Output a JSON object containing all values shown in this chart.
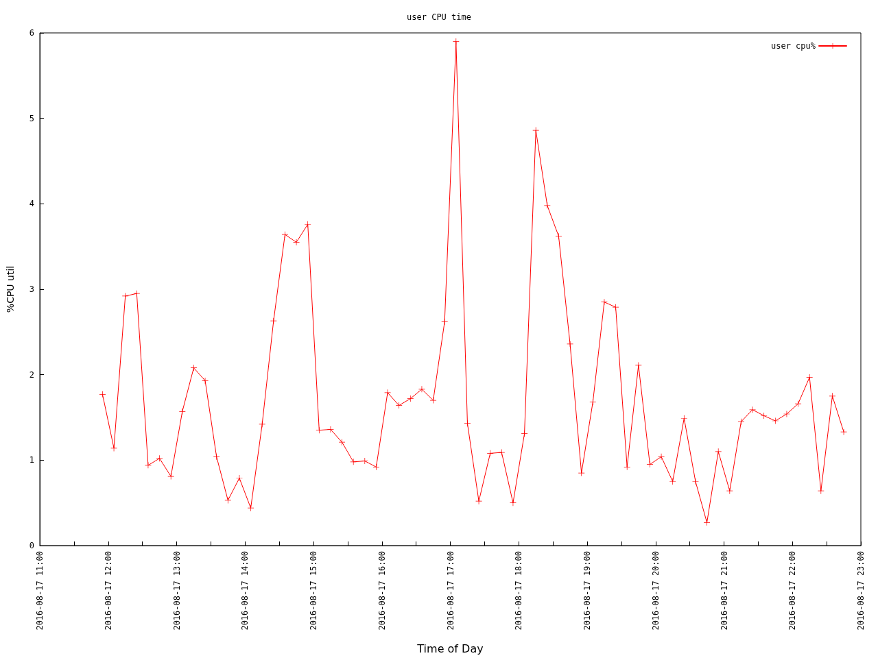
{
  "chart_data": {
    "type": "line",
    "title": "user CPU time",
    "xlabel": "Time of Day",
    "ylabel": "%CPU util",
    "x": [
      "2016-08-17T11:55",
      "2016-08-17T12:05",
      "2016-08-17T12:15",
      "2016-08-17T12:25",
      "2016-08-17T12:35",
      "2016-08-17T12:45",
      "2016-08-17T12:55",
      "2016-08-17T13:05",
      "2016-08-17T13:15",
      "2016-08-17T13:25",
      "2016-08-17T13:35",
      "2016-08-17T13:45",
      "2016-08-17T13:55",
      "2016-08-17T14:05",
      "2016-08-17T14:15",
      "2016-08-17T14:25",
      "2016-08-17T14:35",
      "2016-08-17T14:45",
      "2016-08-17T14:55",
      "2016-08-17T15:05",
      "2016-08-17T15:15",
      "2016-08-17T15:25",
      "2016-08-17T15:35",
      "2016-08-17T15:45",
      "2016-08-17T15:55",
      "2016-08-17T16:05",
      "2016-08-17T16:15",
      "2016-08-17T16:25",
      "2016-08-17T16:35",
      "2016-08-17T16:45",
      "2016-08-17T16:55",
      "2016-08-17T17:05",
      "2016-08-17T17:15",
      "2016-08-17T17:25",
      "2016-08-17T17:35",
      "2016-08-17T17:45",
      "2016-08-17T17:55",
      "2016-08-17T18:05",
      "2016-08-17T18:15",
      "2016-08-17T18:25",
      "2016-08-17T18:35",
      "2016-08-17T18:45",
      "2016-08-17T18:55",
      "2016-08-17T19:05",
      "2016-08-17T19:15",
      "2016-08-17T19:25",
      "2016-08-17T19:35",
      "2016-08-17T19:45",
      "2016-08-17T19:55",
      "2016-08-17T20:05",
      "2016-08-17T20:15",
      "2016-08-17T20:25",
      "2016-08-17T20:35",
      "2016-08-17T20:45",
      "2016-08-17T20:55",
      "2016-08-17T21:05",
      "2016-08-17T21:15",
      "2016-08-17T21:25",
      "2016-08-17T21:35",
      "2016-08-17T21:45",
      "2016-08-17T21:55",
      "2016-08-17T22:05",
      "2016-08-17T22:15",
      "2016-08-17T22:25",
      "2016-08-17T22:35",
      "2016-08-17T22:45"
    ],
    "series": [
      {
        "name": "user cpu%",
        "color": "#ff0000",
        "values": [
          1.77,
          1.14,
          2.92,
          2.95,
          0.94,
          1.02,
          0.81,
          1.57,
          2.08,
          1.93,
          1.04,
          0.53,
          0.79,
          0.44,
          1.42,
          2.63,
          3.64,
          3.55,
          3.76,
          1.35,
          1.36,
          1.21,
          0.98,
          0.99,
          0.92,
          1.79,
          1.64,
          1.72,
          1.83,
          1.7,
          2.62,
          5.9,
          1.43,
          0.52,
          1.08,
          1.09,
          0.5,
          1.31,
          4.86,
          3.98,
          3.62,
          2.36,
          0.85,
          1.68,
          2.85,
          2.79,
          0.92,
          2.11,
          0.95,
          1.04,
          0.75,
          1.49,
          0.75,
          0.27,
          1.1,
          0.64,
          1.45,
          1.59,
          1.52,
          1.46,
          1.54,
          1.66,
          1.97,
          0.64,
          1.75,
          1.33
        ]
      }
    ],
    "xlim": [
      "2016-08-17T11:00",
      "2016-08-17T23:00"
    ],
    "xticks": [
      {
        "value": "2016-08-17T11:00",
        "label": "2016-08-17 11:00"
      },
      {
        "value": "2016-08-17T11:30",
        "label": null
      },
      {
        "value": "2016-08-17T12:00",
        "label": "2016-08-17 12:00"
      },
      {
        "value": "2016-08-17T12:30",
        "label": null
      },
      {
        "value": "2016-08-17T13:00",
        "label": "2016-08-17 13:00"
      },
      {
        "value": "2016-08-17T13:30",
        "label": null
      },
      {
        "value": "2016-08-17T14:00",
        "label": "2016-08-17 14:00"
      },
      {
        "value": "2016-08-17T14:30",
        "label": null
      },
      {
        "value": "2016-08-17T15:00",
        "label": "2016-08-17 15:00"
      },
      {
        "value": "2016-08-17T15:30",
        "label": null
      },
      {
        "value": "2016-08-17T16:00",
        "label": "2016-08-17 16:00"
      },
      {
        "value": "2016-08-17T16:30",
        "label": null
      },
      {
        "value": "2016-08-17T17:00",
        "label": "2016-08-17 17:00"
      },
      {
        "value": "2016-08-17T17:30",
        "label": null
      },
      {
        "value": "2016-08-17T18:00",
        "label": "2016-08-17 18:00"
      },
      {
        "value": "2016-08-17T18:30",
        "label": null
      },
      {
        "value": "2016-08-17T19:00",
        "label": "2016-08-17 19:00"
      },
      {
        "value": "2016-08-17T19:30",
        "label": null
      },
      {
        "value": "2016-08-17T20:00",
        "label": "2016-08-17 20:00"
      },
      {
        "value": "2016-08-17T20:30",
        "label": null
      },
      {
        "value": "2016-08-17T21:00",
        "label": "2016-08-17 21:00"
      },
      {
        "value": "2016-08-17T21:30",
        "label": null
      },
      {
        "value": "2016-08-17T22:00",
        "label": "2016-08-17 22:00"
      },
      {
        "value": "2016-08-17T22:30",
        "label": null
      },
      {
        "value": "2016-08-17T23:00",
        "label": "2016-08-17 23:00"
      }
    ],
    "ylim": [
      0,
      6
    ],
    "yticks": [
      0,
      1,
      2,
      3,
      4,
      5,
      6
    ],
    "grid": false,
    "legend": "top right",
    "marker": "cross",
    "line_style": "solid"
  }
}
